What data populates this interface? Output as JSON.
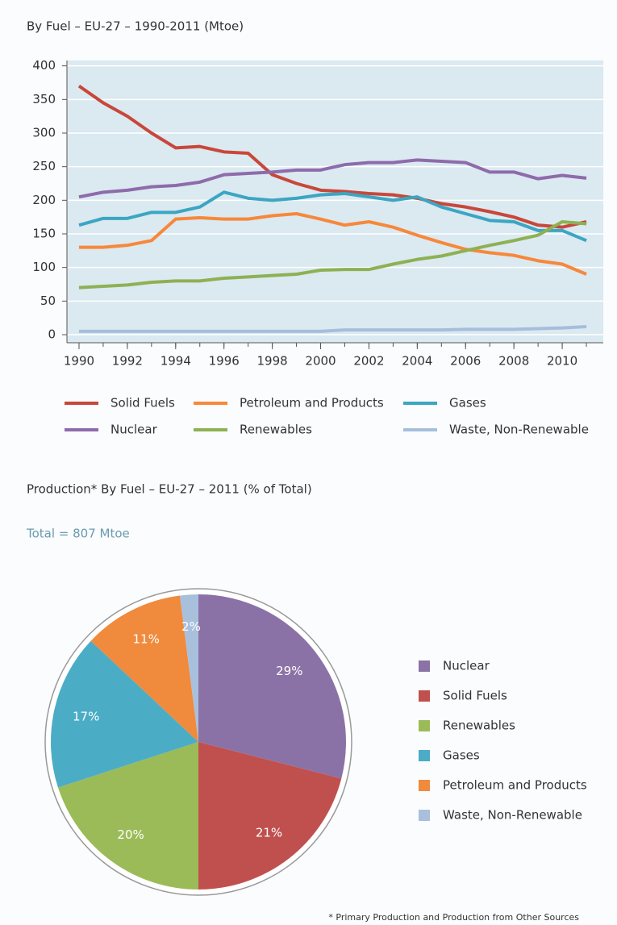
{
  "chart_data": [
    {
      "type": "line",
      "title": "By Fuel – EU-27 – 1990-2011 (Mtoe)",
      "x": [
        1990,
        1991,
        1992,
        1993,
        1994,
        1995,
        1996,
        1997,
        1998,
        1999,
        2000,
        2001,
        2002,
        2003,
        2004,
        2005,
        2006,
        2007,
        2008,
        2009,
        2010,
        2011
      ],
      "xlim": [
        1989.5,
        2011.7
      ],
      "xticks": [
        1990,
        1992,
        1994,
        1996,
        1998,
        2000,
        2002,
        2004,
        2006,
        2008,
        2010
      ],
      "ylim": [
        -12,
        408
      ],
      "yticks": [
        0,
        50,
        100,
        150,
        200,
        250,
        300,
        350,
        400
      ],
      "grid": true,
      "series": [
        {
          "name": "Solid Fuels",
          "color": "#c8473a",
          "values": [
            370,
            345,
            325,
            300,
            278,
            280,
            272,
            270,
            238,
            225,
            215,
            213,
            210,
            208,
            203,
            195,
            190,
            183,
            175,
            163,
            160,
            168
          ]
        },
        {
          "name": "Petroleum and Products",
          "color": "#f7883a",
          "values": [
            130,
            130,
            133,
            140,
            172,
            174,
            172,
            172,
            177,
            180,
            172,
            163,
            168,
            160,
            148,
            137,
            127,
            122,
            118,
            110,
            105,
            90
          ]
        },
        {
          "name": "Gases",
          "color": "#3ba6c2",
          "values": [
            163,
            173,
            173,
            182,
            182,
            190,
            212,
            203,
            200,
            203,
            208,
            210,
            205,
            200,
            205,
            190,
            180,
            170,
            168,
            155,
            155,
            140
          ]
        },
        {
          "name": "Nuclear",
          "color": "#8e6bab",
          "values": [
            205,
            212,
            215,
            220,
            222,
            227,
            238,
            240,
            242,
            245,
            245,
            253,
            256,
            256,
            260,
            258,
            256,
            242,
            242,
            232,
            237,
            233
          ]
        },
        {
          "name": "Renewables",
          "color": "#8db153",
          "values": [
            70,
            72,
            74,
            78,
            80,
            80,
            84,
            86,
            88,
            90,
            96,
            97,
            97,
            105,
            112,
            117,
            125,
            133,
            140,
            148,
            168,
            165
          ]
        },
        {
          "name": "Waste, Non-Renewable",
          "color": "#a6bedc",
          "values": [
            5,
            5,
            5,
            5,
            5,
            5,
            5,
            5,
            5,
            5,
            5,
            7,
            7,
            7,
            7,
            7,
            8,
            8,
            8,
            9,
            10,
            12
          ]
        }
      ]
    },
    {
      "type": "pie",
      "title": "Production* By Fuel – EU-27 – 2011 (% of Total)",
      "subtitle": "Total = 807 Mtoe",
      "categories": [
        "Nuclear",
        "Solid Fuels",
        "Renewables",
        "Gases",
        "Petroleum and Products",
        "Waste, Non-Renewable"
      ],
      "values": [
        29,
        21,
        20,
        17,
        11,
        2
      ],
      "value_labels": [
        "29%",
        "21%",
        "20%",
        "17%",
        "11%",
        "2%"
      ],
      "colors": [
        "#8b72a6",
        "#c0504d",
        "#9bbb59",
        "#4bacc6",
        "#f08a3c",
        "#a9c0dc"
      ]
    }
  ],
  "footnote": "* Primary Production and Production from Other Sources"
}
